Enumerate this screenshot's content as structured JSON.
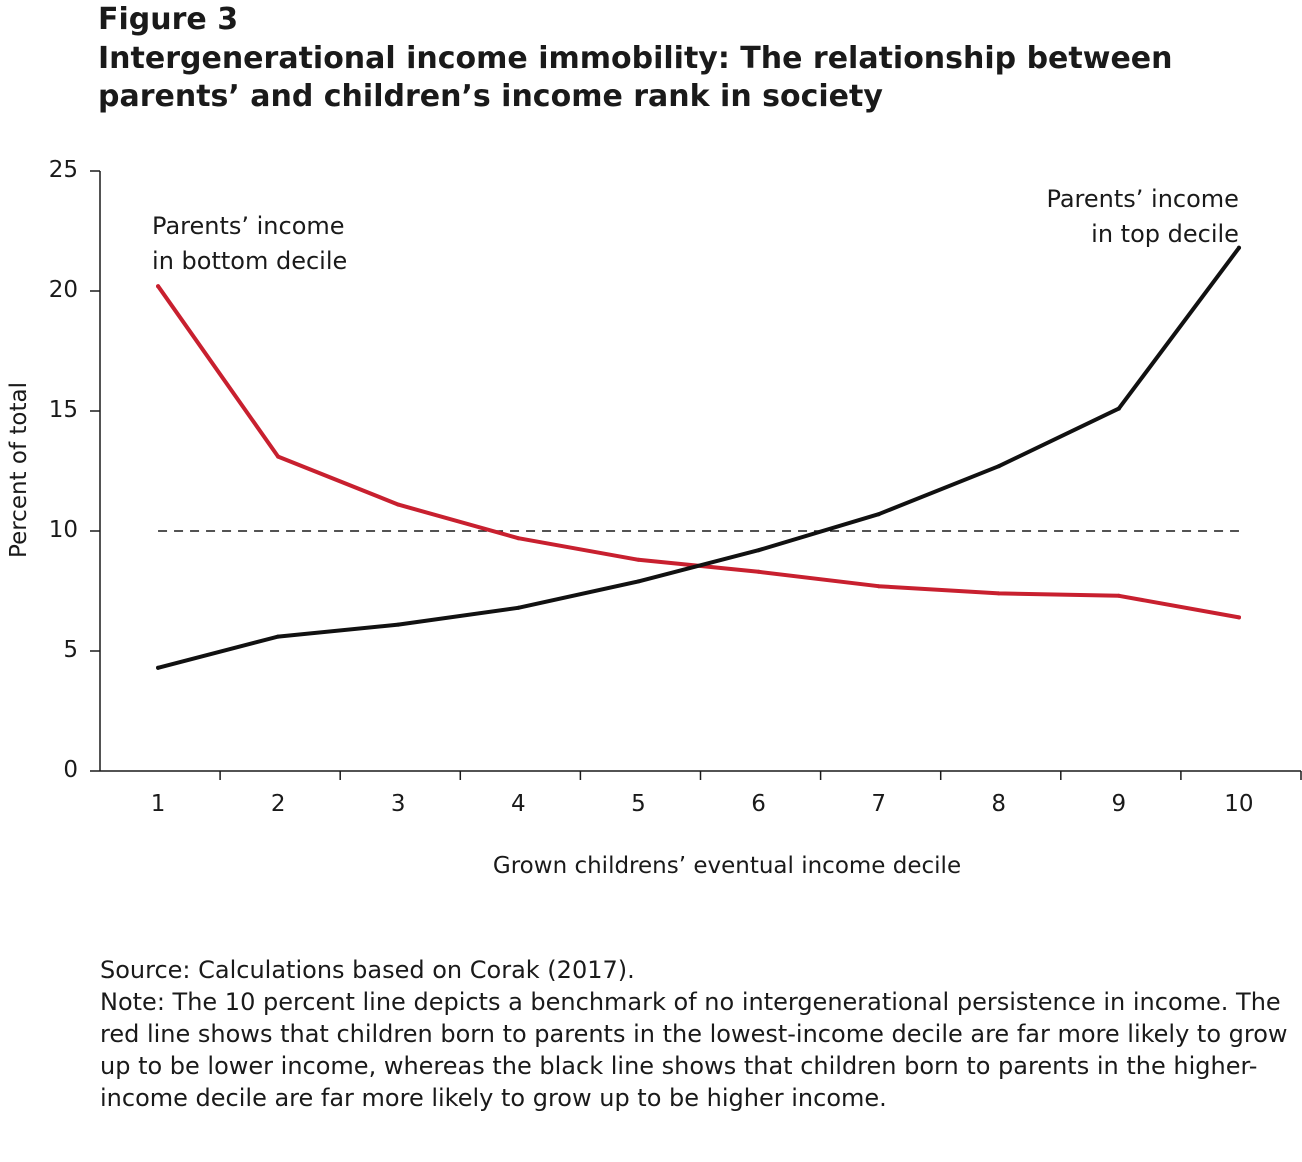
{
  "figure": {
    "label": "Figure 3",
    "title": "Intergenerational income immobility: The relationship between parents’ and children’s income rank in society"
  },
  "chart_data": {
    "type": "line",
    "x": [
      1,
      2,
      3,
      4,
      5,
      6,
      7,
      8,
      9,
      10
    ],
    "xlabel": "Grown childrens’ eventual income decile",
    "ylabel": "Percent of total",
    "ylim": [
      0,
      25
    ],
    "yticks": [
      0,
      5,
      10,
      15,
      20,
      25
    ],
    "grid": false,
    "series": [
      {
        "label_lines": [
          "Parents’ income",
          "in bottom decile"
        ],
        "color": "#c8202f",
        "values": [
          20.2,
          13.1,
          11.1,
          9.7,
          8.8,
          8.3,
          7.7,
          7.4,
          7.3,
          6.4
        ]
      },
      {
        "label_lines": [
          "Parents’ income",
          "in top decile"
        ],
        "color": "#111111",
        "values": [
          4.3,
          5.6,
          6.1,
          6.8,
          7.9,
          9.2,
          10.7,
          12.7,
          15.1,
          21.8
        ]
      }
    ],
    "reference_line": {
      "y": 10,
      "style": "dashed"
    }
  },
  "footer": {
    "source": "Source: Calculations based on Corak (2017).",
    "note": "Note: The 10 percent line depicts a benchmark of no intergenerational persistence in income. The red line shows that children born to parents in the lowest-income decile are far more likely to grow up to be lower income, whereas the black line shows that children born to parents in the higher-income decile are far more likely to grow up to be higher income."
  }
}
